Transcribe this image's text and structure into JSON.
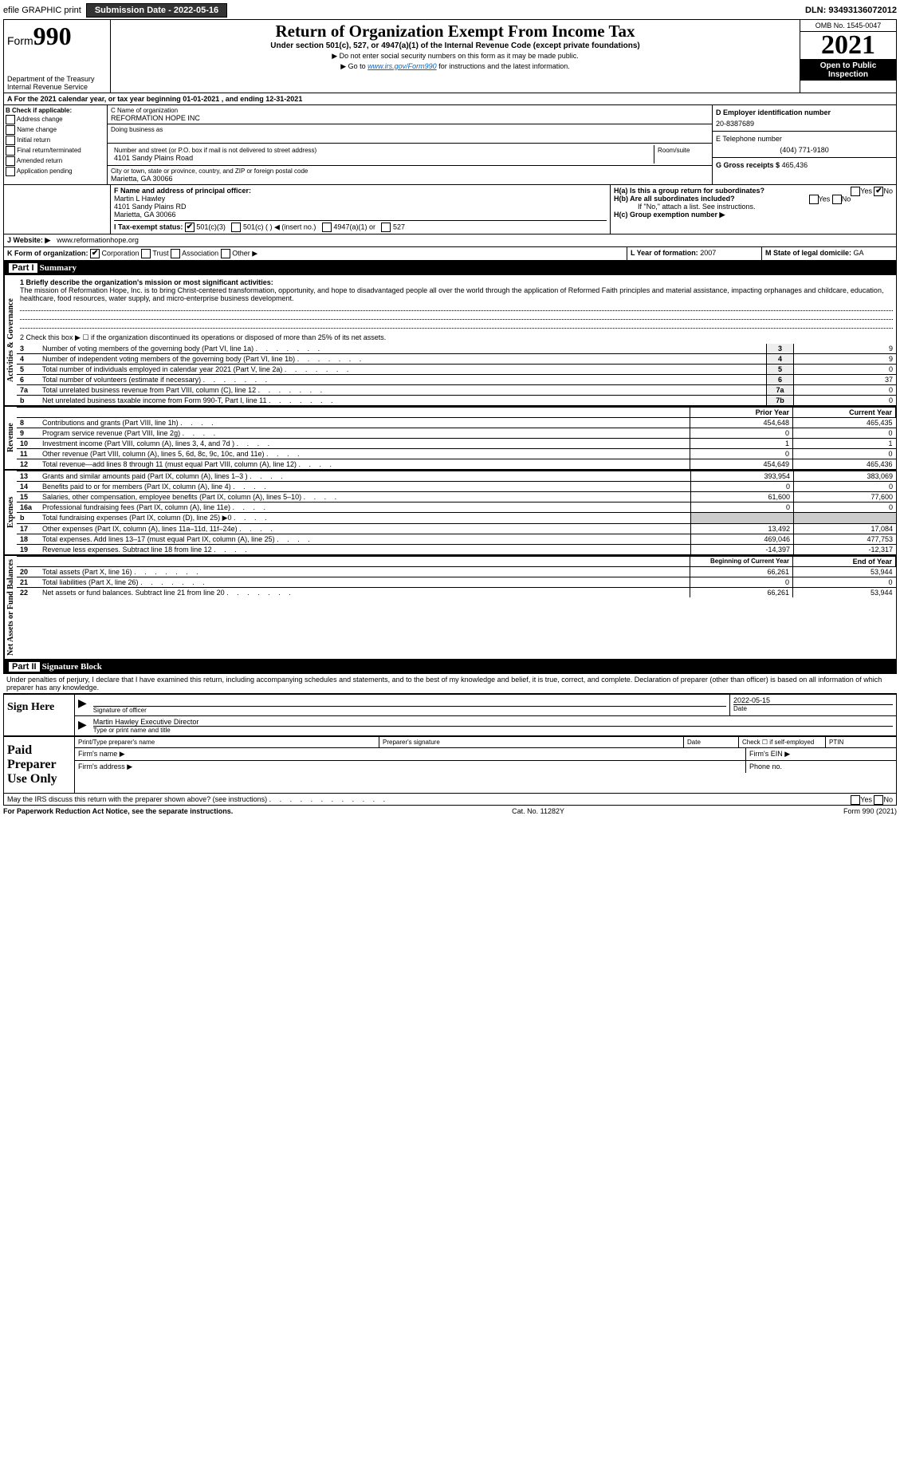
{
  "topbar": {
    "efile": "efile GRAPHIC print",
    "submission_label": "Submission Date - 2022-05-16",
    "dln": "DLN: 93493136072012"
  },
  "header": {
    "form": "Form",
    "form_num": "990",
    "dept": "Department of the Treasury\nInternal Revenue Service",
    "title": "Return of Organization Exempt From Income Tax",
    "subtitle": "Under section 501(c), 527, or 4947(a)(1) of the Internal Revenue Code (except private foundations)",
    "note1": "▶ Do not enter social security numbers on this form as it may be made public.",
    "note2_pre": "▶ Go to ",
    "note2_link": "www.irs.gov/Form990",
    "note2_post": " for instructions and the latest information.",
    "omb": "OMB No. 1545-0047",
    "year": "2021",
    "inspect": "Open to Public Inspection"
  },
  "section_a": "A For the 2021 calendar year, or tax year beginning 01-01-2021    , and ending 12-31-2021",
  "col_b": {
    "header": "B Check if applicable:",
    "items": [
      "Address change",
      "Name change",
      "Initial return",
      "Final return/terminated",
      "Amended return",
      "Application pending"
    ]
  },
  "col_c": {
    "name_label": "C Name of organization",
    "name": "REFORMATION HOPE INC",
    "dba_label": "Doing business as",
    "street_label": "Number and street (or P.O. box if mail is not delivered to street address)",
    "room_label": "Room/suite",
    "street": "4101 Sandy Plains Road",
    "city_label": "City or town, state or province, country, and ZIP or foreign postal code",
    "city": "Marietta, GA  30066",
    "officer_label": "F Name and address of principal officer:",
    "officer": "Martin L Hawley\n4101 Sandy Plains RD\nMarietta, GA  30066"
  },
  "col_d": {
    "ein_label": "D Employer identification number",
    "ein": "20-8387689",
    "phone_label": "E Telephone number",
    "phone": "(404) 771-9180",
    "receipts_label": "G Gross receipts $",
    "receipts": "465,436"
  },
  "row_h": {
    "ha": "H(a)  Is this a group return for subordinates?",
    "hb": "H(b)  Are all subordinates included?",
    "hb_note": "If \"No,\" attach a list. See instructions.",
    "hc": "H(c)  Group exemption number ▶"
  },
  "row_i": {
    "label": "I  Tax-exempt status:",
    "opts": [
      "501(c)(3)",
      "501(c) (  ) ◀ (insert no.)",
      "4947(a)(1) or",
      "527"
    ]
  },
  "row_j": {
    "label": "J Website: ▶",
    "value": "www.reformationhope.org"
  },
  "row_k": {
    "label": "K Form of organization:",
    "opts": [
      "Corporation",
      "Trust",
      "Association",
      "Other ▶"
    ]
  },
  "row_l": {
    "label": "L Year of formation:",
    "value": "2007"
  },
  "row_m": {
    "label": "M State of legal domicile:",
    "value": "GA"
  },
  "part1": {
    "header": "Part I",
    "title": "Summary",
    "vert1": "Activities & Governance",
    "vert2": "Revenue",
    "vert3": "Expenses",
    "vert4": "Net Assets or Fund Balances",
    "q1_label": "1  Briefly describe the organization's mission or most significant activities:",
    "q1_text": "The mission of Reformation Hope, Inc. is to bring Christ-centered transformation, opportunity, and hope to disadvantaged people all over the world through the application of Reformed Faith principles and material assistance, impacting orphanages and childcare, education, healthcare, food resources, water supply, and micro-enterprise business development.",
    "q2": "2    Check this box ▶ ☐  if the organization discontinued its operations or disposed of more than 25% of its net assets.",
    "lines_gov": [
      {
        "n": "3",
        "label": "Number of voting members of the governing body (Part VI, line 1a)",
        "box": "3",
        "val": "9"
      },
      {
        "n": "4",
        "label": "Number of independent voting members of the governing body (Part VI, line 1b)",
        "box": "4",
        "val": "9"
      },
      {
        "n": "5",
        "label": "Total number of individuals employed in calendar year 2021 (Part V, line 2a)",
        "box": "5",
        "val": "0"
      },
      {
        "n": "6",
        "label": "Total number of volunteers (estimate if necessary)",
        "box": "6",
        "val": "37"
      },
      {
        "n": "7a",
        "label": "Total unrelated business revenue from Part VIII, column (C), line 12",
        "box": "7a",
        "val": "0"
      },
      {
        "n": "b",
        "label": "Net unrelated business taxable income from Form 990-T, Part I, line 11",
        "box": "7b",
        "val": "0"
      }
    ],
    "col_prior": "Prior Year",
    "col_current": "Current Year",
    "lines_rev": [
      {
        "n": "8",
        "label": "Contributions and grants (Part VIII, line 1h)",
        "prior": "454,648",
        "curr": "465,435"
      },
      {
        "n": "9",
        "label": "Program service revenue (Part VIII, line 2g)",
        "prior": "0",
        "curr": "0"
      },
      {
        "n": "10",
        "label": "Investment income (Part VIII, column (A), lines 3, 4, and 7d )",
        "prior": "1",
        "curr": "1"
      },
      {
        "n": "11",
        "label": "Other revenue (Part VIII, column (A), lines 5, 6d, 8c, 9c, 10c, and 11e)",
        "prior": "0",
        "curr": "0"
      },
      {
        "n": "12",
        "label": "Total revenue—add lines 8 through 11 (must equal Part VIII, column (A), line 12)",
        "prior": "454,649",
        "curr": "465,436"
      }
    ],
    "lines_exp": [
      {
        "n": "13",
        "label": "Grants and similar amounts paid (Part IX, column (A), lines 1–3 )",
        "prior": "393,954",
        "curr": "383,069"
      },
      {
        "n": "14",
        "label": "Benefits paid to or for members (Part IX, column (A), line 4)",
        "prior": "0",
        "curr": "0"
      },
      {
        "n": "15",
        "label": "Salaries, other compensation, employee benefits (Part IX, column (A), lines 5–10)",
        "prior": "61,600",
        "curr": "77,600"
      },
      {
        "n": "16a",
        "label": "Professional fundraising fees (Part IX, column (A), line 11e)",
        "prior": "0",
        "curr": "0"
      },
      {
        "n": "b",
        "label": "Total fundraising expenses (Part IX, column (D), line 25) ▶0",
        "prior": "",
        "curr": "",
        "gray": true
      },
      {
        "n": "17",
        "label": "Other expenses (Part IX, column (A), lines 11a–11d, 11f–24e)",
        "prior": "13,492",
        "curr": "17,084"
      },
      {
        "n": "18",
        "label": "Total expenses. Add lines 13–17 (must equal Part IX, column (A), line 25)",
        "prior": "469,046",
        "curr": "477,753"
      },
      {
        "n": "19",
        "label": "Revenue less expenses. Subtract line 18 from line 12",
        "prior": "-14,397",
        "curr": "-12,317"
      }
    ],
    "col_begin": "Beginning of Current Year",
    "col_end": "End of Year",
    "lines_net": [
      {
        "n": "20",
        "label": "Total assets (Part X, line 16)",
        "prior": "66,261",
        "curr": "53,944"
      },
      {
        "n": "21",
        "label": "Total liabilities (Part X, line 26)",
        "prior": "0",
        "curr": "0"
      },
      {
        "n": "22",
        "label": "Net assets or fund balances. Subtract line 21 from line 20",
        "prior": "66,261",
        "curr": "53,944"
      }
    ]
  },
  "part2": {
    "header": "Part II",
    "title": "Signature Block",
    "penalty": "Under penalties of perjury, I declare that I have examined this return, including accompanying schedules and statements, and to the best of my knowledge and belief, it is true, correct, and complete. Declaration of preparer (other than officer) is based on all information of which preparer has any knowledge.",
    "sign_here": "Sign Here",
    "sig_officer": "Signature of officer",
    "sig_date": "2022-05-15",
    "date_label": "Date",
    "officer_name": "Martin Hawley  Executive Director",
    "type_label": "Type or print name and title",
    "paid_label": "Paid Preparer Use Only",
    "prep_name": "Print/Type preparer's name",
    "prep_sig": "Preparer's signature",
    "prep_date": "Date",
    "prep_check": "Check ☐ if self-employed",
    "ptin": "PTIN",
    "firm_name": "Firm's name    ▶",
    "firm_ein": "Firm's EIN ▶",
    "firm_addr": "Firm's address ▶",
    "firm_phone": "Phone no.",
    "discuss": "May the IRS discuss this return with the preparer shown above? (see instructions)"
  },
  "footer": {
    "left": "For Paperwork Reduction Act Notice, see the separate instructions.",
    "center": "Cat. No. 11282Y",
    "right": "Form 990 (2021)"
  }
}
